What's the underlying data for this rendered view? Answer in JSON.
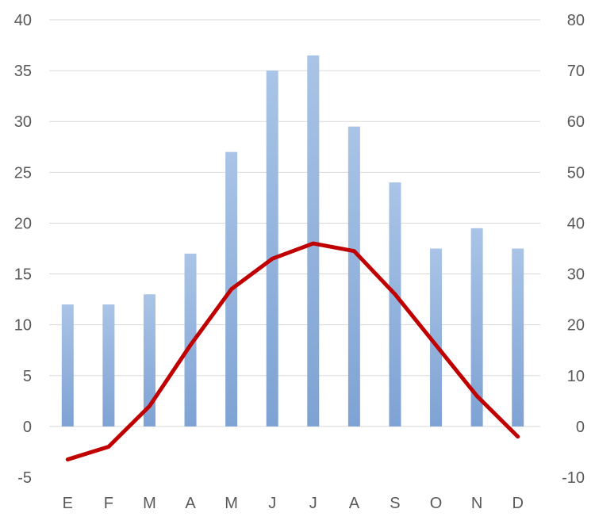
{
  "colors": {
    "bar_top": "#a9c4e6",
    "bar_bottom": "#7ea2d3",
    "line": "#c00000",
    "grid": "#d9d9d9",
    "text": "#595959",
    "background": "#ffffff"
  },
  "chart_data": {
    "type": "bar",
    "categories": [
      "E",
      "F",
      "M",
      "A",
      "M",
      "J",
      "J",
      "A",
      "S",
      "O",
      "N",
      "D"
    ],
    "title": "",
    "xlabel": "",
    "ylabel": "",
    "y_left": {
      "ylim": [
        -5,
        40
      ],
      "ticks": [
        -5,
        0,
        5,
        10,
        15,
        20,
        25,
        30,
        35,
        40
      ]
    },
    "y_right": {
      "ylim": [
        -10,
        80
      ],
      "ticks": [
        -10,
        0,
        10,
        20,
        30,
        40,
        50,
        60,
        70,
        80
      ]
    },
    "grid": true,
    "legend": "none",
    "series": [
      {
        "type": "bar",
        "axis": "left",
        "values": [
          12,
          12,
          13,
          17,
          27,
          35,
          36.5,
          29.5,
          24,
          17.5,
          19.5,
          17.5
        ]
      },
      {
        "type": "line",
        "axis": "right",
        "values": [
          -6.5,
          -4,
          4,
          16,
          27,
          33,
          36,
          34.5,
          26,
          16,
          6,
          -2
        ]
      }
    ]
  }
}
